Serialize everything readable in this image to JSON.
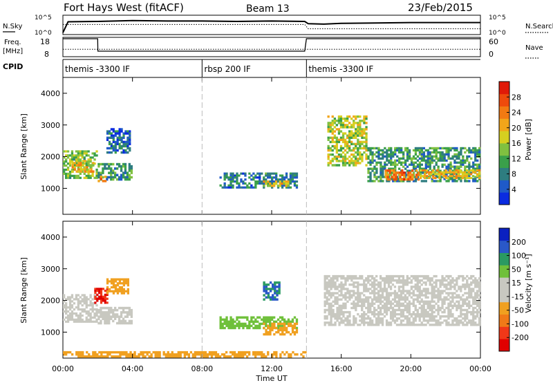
{
  "header": {
    "title": "Fort Hays West (fitACF)",
    "beam": "Beam 13",
    "date": "23/Feb/2015"
  },
  "top_panel": {
    "left_label": "N.Sky",
    "left_ticks": [
      "10^5",
      "10^0"
    ],
    "right_label": "N.Search",
    "right_ticks": [
      "10^5",
      "10^0"
    ]
  },
  "freq_panel": {
    "left_label_1": "Freq.",
    "left_label_2": "[MHz]",
    "left_ticks": [
      "18",
      "8"
    ],
    "right_label": "Nave",
    "right_ticks": [
      "60",
      "0"
    ]
  },
  "cpid": {
    "label": "CPID",
    "segments": [
      {
        "text": "themis -3300 IF",
        "start": 0
      },
      {
        "text": "rbsp 200 IF",
        "start": 8
      },
      {
        "text": "themis -3300 IF",
        "start": 14
      }
    ]
  },
  "axes": {
    "ylabel": "Slant Range [km]",
    "xlabel": "Time UT",
    "y_ticks": [
      "4000",
      "3000",
      "2000",
      "1000"
    ],
    "x_ticks": [
      "00:00",
      "04:00",
      "08:00",
      "12:00",
      "16:00",
      "20:00",
      "00:00"
    ]
  },
  "colorbars": {
    "power": {
      "label": "Power [dB]",
      "ticks": [
        "28",
        "24",
        "20",
        "16",
        "12",
        "8",
        "4"
      ],
      "colors": [
        "#0a2be0",
        "#1f5ac8",
        "#2e7d80",
        "#3aa04a",
        "#80c040",
        "#d6cf20",
        "#f2a51a",
        "#f27a12",
        "#ee4a0c",
        "#e01a08"
      ]
    },
    "velocity": {
      "label": "Velocity [m s⁻¹]",
      "ticks": [
        "200",
        "100",
        "50",
        "15",
        "-15",
        "-50",
        "-100",
        "-200"
      ],
      "colors": [
        "#e00000",
        "#f03818",
        "#f07a18",
        "#f0a020",
        "#c8c8c0",
        "#c8c8c0",
        "#6fc03a",
        "#2a9a62",
        "#2a58c8",
        "#0a20c0"
      ]
    }
  },
  "chart_data": [
    {
      "type": "line",
      "name": "N.Sky / N.Search",
      "x_unit": "hours UT",
      "x": [
        0,
        0.3,
        2,
        4,
        6,
        8,
        10,
        12,
        13.9,
        14.1,
        15,
        16,
        18,
        20,
        22,
        24
      ],
      "nsky_log10": [
        0.5,
        3.3,
        3.4,
        3.6,
        3.5,
        3.5,
        3.4,
        3.5,
        3.4,
        2.8,
        2.7,
        2.9,
        3.0,
        3.1,
        3.1,
        3.1
      ],
      "nsearch_log10": [
        2.6,
        2.6,
        2.6,
        2.6,
        2.6,
        2.6,
        2.6,
        2.6,
        2.6,
        1.5,
        1.5,
        1.5,
        1.5,
        1.5,
        1.5,
        1.5
      ]
    },
    {
      "type": "line",
      "name": "Freq / Nave",
      "x": [
        0,
        2.0,
        2.01,
        8,
        13.9,
        14.0,
        24
      ],
      "freq_mhz": [
        18,
        18,
        10.5,
        10.5,
        10.5,
        18,
        18
      ],
      "nave": [
        22,
        22,
        22,
        22,
        22,
        22,
        22
      ],
      "ylim_freq": [
        8,
        18
      ],
      "ylim_nave": [
        0,
        60
      ]
    },
    {
      "type": "heatmap",
      "title": "Power",
      "xlim": [
        0,
        24
      ],
      "ylim": [
        180,
        4500
      ],
      "value_unit": "dB",
      "cells": [
        {
          "t0": 0.0,
          "t1": 2.0,
          "r0": 1300,
          "r1": 2200,
          "value": 14
        },
        {
          "t0": 0.5,
          "t1": 1.8,
          "r0": 1500,
          "r1": 1900,
          "value": 20
        },
        {
          "t0": 2.0,
          "t1": 4.0,
          "r0": 1250,
          "r1": 1800,
          "value": 10
        },
        {
          "t0": 2.0,
          "t1": 2.5,
          "r0": 1200,
          "r1": 1400,
          "value": 24
        },
        {
          "t0": 2.5,
          "t1": 3.9,
          "r0": 2100,
          "r1": 2900,
          "value": 6
        },
        {
          "t0": 9.0,
          "t1": 13.5,
          "r0": 1000,
          "r1": 1500,
          "value": 8
        },
        {
          "t0": 11.5,
          "t1": 13.0,
          "r0": 1050,
          "r1": 1250,
          "value": 18
        },
        {
          "t0": 15.2,
          "t1": 17.5,
          "r0": 1700,
          "r1": 3300,
          "value": 16
        },
        {
          "t0": 17.5,
          "t1": 24.0,
          "r0": 1200,
          "r1": 2300,
          "value": 10
        },
        {
          "t0": 18.5,
          "t1": 20.5,
          "r0": 1250,
          "r1": 1600,
          "value": 24
        },
        {
          "t0": 20.5,
          "t1": 24.0,
          "r0": 1300,
          "r1": 1600,
          "value": 20
        }
      ]
    },
    {
      "type": "heatmap",
      "title": "Velocity",
      "xlim": [
        0,
        24
      ],
      "ylim": [
        180,
        4500
      ],
      "value_unit": "m s^-1",
      "cells": [
        {
          "t0": 0.0,
          "t1": 2.0,
          "r0": 1300,
          "r1": 2200,
          "value": 0
        },
        {
          "t0": 2.0,
          "t1": 4.0,
          "r0": 1250,
          "r1": 1800,
          "value": 0
        },
        {
          "t0": 1.8,
          "t1": 2.6,
          "r0": 1900,
          "r1": 2400,
          "value": -200
        },
        {
          "t0": 2.5,
          "t1": 3.8,
          "r0": 2200,
          "r1": 2700,
          "value": -60
        },
        {
          "t0": 9.0,
          "t1": 13.5,
          "r0": 1100,
          "r1": 1500,
          "value": 60
        },
        {
          "t0": 11.5,
          "t1": 13.5,
          "r0": 900,
          "r1": 1300,
          "value": -70
        },
        {
          "t0": 11.5,
          "t1": 12.5,
          "r0": 2000,
          "r1": 2600,
          "value": 150
        },
        {
          "t0": 15.0,
          "t1": 24.0,
          "r0": 1200,
          "r1": 2800,
          "value": 0
        },
        {
          "t0": 0.0,
          "t1": 14.0,
          "r0": 200,
          "r1": 400,
          "value": -60
        }
      ]
    }
  ]
}
